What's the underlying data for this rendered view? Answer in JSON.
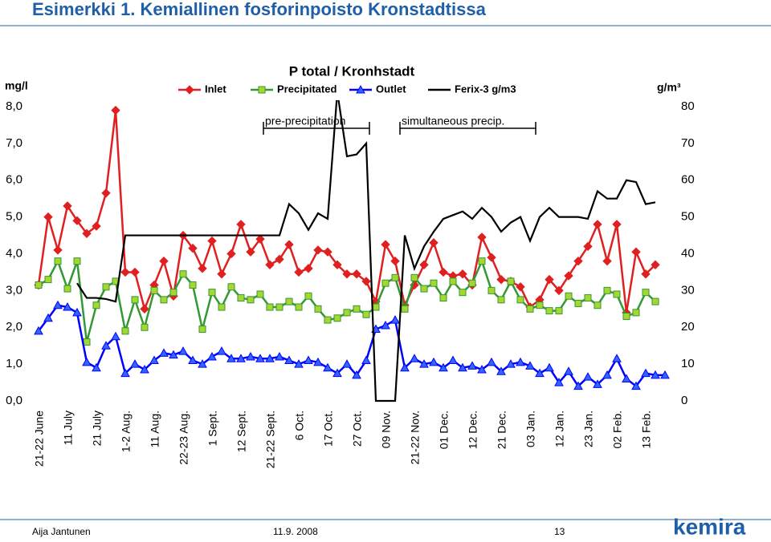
{
  "header": {
    "title": "Esimerkki 1. Kemiallinen fosforinpoisto Kronstadtissa"
  },
  "chart_data": {
    "type": "line",
    "title": "P total / Kronhstadt",
    "y_label": "mg/l",
    "y2_label": "g/m³",
    "annotations": [
      "pre-precipitation",
      "simultaneous precip."
    ],
    "categories": [
      "21-22 June",
      null,
      null,
      "11 July",
      null,
      null,
      "21 July",
      null,
      null,
      "1-2 Aug.",
      null,
      null,
      "11 Aug.",
      null,
      null,
      "22-23 Aug.",
      null,
      null,
      "1 Sept.",
      null,
      null,
      "12 Sept.",
      null,
      null,
      "21-22 Sept.",
      null,
      null,
      "6 Oct.",
      null,
      null,
      "17 Oct.",
      null,
      null,
      "27 Oct.",
      null,
      null,
      "09 Nov.",
      null,
      null,
      "21-22 Nov.",
      null,
      null,
      "01 Dec.",
      null,
      null,
      "12 Dec.",
      null,
      null,
      "21 Dec.",
      null,
      null,
      "03 Jan.",
      null,
      null,
      "12 Jan.",
      null,
      null,
      "23 Jan.",
      null,
      null,
      "02 Feb.",
      null,
      null,
      "13 Feb.",
      null,
      null
    ],
    "ylim": [
      0,
      8
    ],
    "yticks": [
      {
        "value": 0,
        "label": "0,0"
      },
      {
        "value": 1,
        "label": "1,0"
      },
      {
        "value": 2,
        "label": "2,0"
      },
      {
        "value": 3,
        "label": "3,0"
      },
      {
        "value": 4,
        "label": "4,0"
      },
      {
        "value": 5,
        "label": "5,0"
      },
      {
        "value": 6,
        "label": "6,0"
      },
      {
        "value": 7,
        "label": "7,0"
      },
      {
        "value": 8,
        "label": "8,0"
      }
    ],
    "y2lim": [
      0,
      80
    ],
    "y2ticks": [
      0,
      10,
      20,
      30,
      40,
      50,
      60,
      70,
      80
    ],
    "grid": false,
    "legend": "top",
    "series": [
      {
        "name": "Inlet",
        "color": "#e02020",
        "marker": "diamond",
        "marker_fill": "#e02020",
        "values": [
          3.15,
          5.0,
          4.1,
          5.3,
          4.9,
          4.55,
          4.75,
          5.65,
          7.9,
          3.5,
          3.5,
          2.5,
          3.15,
          3.8,
          2.85,
          4.5,
          4.15,
          3.6,
          4.35,
          3.45,
          4.0,
          4.8,
          4.05,
          4.4,
          3.7,
          3.85,
          4.25,
          3.5,
          3.6,
          4.1,
          4.05,
          3.7,
          3.45,
          3.45,
          3.25,
          2.7,
          4.25,
          3.8,
          2.6,
          3.15,
          3.7,
          4.3,
          3.5,
          3.4,
          3.45,
          3.15,
          4.45,
          3.9,
          3.3,
          3.25,
          3.1,
          2.55,
          2.75,
          3.3,
          3.0,
          3.4,
          3.8,
          4.2,
          4.8,
          3.8,
          4.8,
          2.4,
          4.05,
          3.45,
          3.7,
          null
        ]
      },
      {
        "name": "Precipitated",
        "color": "#339933",
        "marker": "square",
        "marker_fill": "#a6d631",
        "values": [
          3.15,
          3.3,
          3.8,
          3.05,
          3.8,
          1.6,
          2.6,
          3.1,
          3.25,
          1.9,
          2.75,
          2.0,
          3.0,
          2.75,
          2.95,
          3.45,
          3.15,
          1.95,
          2.95,
          2.55,
          3.1,
          2.8,
          2.75,
          2.9,
          2.55,
          2.55,
          2.7,
          2.55,
          2.85,
          2.5,
          2.2,
          2.25,
          2.4,
          2.5,
          2.35,
          2.55,
          3.2,
          3.35,
          2.5,
          3.35,
          3.05,
          3.2,
          2.8,
          3.25,
          2.95,
          3.2,
          3.8,
          3.0,
          2.75,
          3.25,
          2.75,
          2.5,
          2.6,
          2.45,
          2.45,
          2.85,
          2.65,
          2.8,
          2.6,
          3.0,
          2.9,
          2.3,
          2.4,
          2.95,
          2.7,
          null
        ]
      },
      {
        "name": "Outlet",
        "color": "#0000ff",
        "marker": "triangle",
        "marker_fill": "#3366ff",
        "values": [
          1.9,
          2.25,
          2.6,
          2.55,
          2.4,
          1.05,
          0.9,
          1.5,
          1.75,
          0.75,
          1.0,
          0.85,
          1.1,
          1.3,
          1.25,
          1.35,
          1.1,
          1.0,
          1.2,
          1.35,
          1.15,
          1.15,
          1.2,
          1.15,
          1.15,
          1.2,
          1.1,
          1.0,
          1.1,
          1.05,
          0.9,
          0.75,
          1.0,
          0.7,
          1.1,
          1.95,
          2.05,
          2.2,
          0.9,
          1.15,
          1.0,
          1.05,
          0.9,
          1.1,
          0.9,
          0.95,
          0.85,
          1.05,
          0.8,
          1.0,
          1.05,
          0.95,
          0.75,
          0.9,
          0.5,
          0.8,
          0.4,
          0.65,
          0.45,
          0.7,
          1.15,
          0.6,
          0.4,
          0.75,
          0.7,
          0.7
        ]
      },
      {
        "name": "Ferix-3 g/m3",
        "color": "#000000",
        "marker": "none",
        "axis": "y2",
        "values": [
          null,
          null,
          null,
          null,
          32,
          28,
          28,
          27.7,
          27,
          45,
          45,
          45,
          45,
          45,
          45,
          45,
          45,
          45,
          45,
          45,
          45,
          45,
          45,
          45,
          45,
          45,
          53.5,
          51,
          46.5,
          51,
          49.5,
          84,
          66.5,
          67,
          70,
          0,
          0,
          0,
          45,
          36,
          42,
          46,
          49.5,
          50.5,
          51.5,
          49.5,
          52.5,
          50,
          46,
          48.5,
          50,
          43.5,
          50,
          52.5,
          50,
          50,
          50,
          49.5,
          57,
          55,
          55,
          60,
          59.5,
          53.5,
          54,
          null
        ]
      }
    ]
  },
  "footer": {
    "author": "Aija Jantunen",
    "date": "11.9. 2008",
    "page": "13",
    "logo": "kemira"
  }
}
